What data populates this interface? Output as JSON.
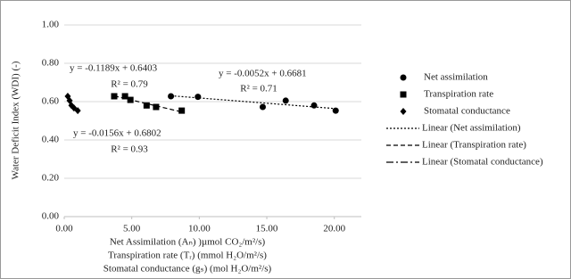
{
  "chart_data": {
    "type": "scatter",
    "y_label": "Water Deficit Index (WDI) (-)",
    "x_labels": [
      "Net Assimilation (Aₙ) )µmol CO₂/m²/s)",
      "Transpiration rate (Tᵣ) (mmol H₂O/m²/s)",
      "Stomatal conductance (gₛ) (mol H₂O/m²/s)"
    ],
    "xlim": [
      0,
      22
    ],
    "ylim": [
      0,
      1
    ],
    "xticks": [
      {
        "value": 0,
        "label": "0.00"
      },
      {
        "value": 5,
        "label": "5.00"
      },
      {
        "value": 10,
        "label": "10.00"
      },
      {
        "value": 15,
        "label": "15.00"
      },
      {
        "value": 20,
        "label": "20.00"
      }
    ],
    "yticks": [
      {
        "value": 0,
        "label": "0.00"
      },
      {
        "value": 0.2,
        "label": "0.20"
      },
      {
        "value": 0.4,
        "label": "0.40"
      },
      {
        "value": 0.6,
        "label": "0.60"
      },
      {
        "value": 0.8,
        "label": "0.80"
      },
      {
        "value": 1,
        "label": "1.00"
      }
    ],
    "grid": true,
    "series": [
      {
        "name": "Net assimilation",
        "marker": "circle",
        "color": "#000000",
        "x": [
          7.9,
          9.9,
          14.7,
          16.4,
          18.5,
          20.1
        ],
        "values": [
          0.628,
          0.625,
          0.572,
          0.605,
          0.58,
          0.553
        ]
      },
      {
        "name": "Transpiration rate",
        "marker": "square",
        "color": "#000000",
        "x": [
          3.7,
          4.5,
          4.9,
          6.1,
          6.8,
          8.7
        ],
        "values": [
          0.628,
          0.628,
          0.609,
          0.58,
          0.572,
          0.553
        ]
      },
      {
        "name": "Stomatal conductance",
        "marker": "diamond",
        "color": "#000000",
        "x": [
          0.26,
          0.4,
          0.53,
          0.72,
          1.0
        ],
        "values": [
          0.628,
          0.605,
          0.58,
          0.567,
          0.553
        ]
      }
    ],
    "trendlines": [
      {
        "name": "Linear (Net assimilation)",
        "dash": "2,2"
      },
      {
        "name": "Linear (Transpiration rate)",
        "dash": "5,3"
      },
      {
        "name": "Linear (Stomatal conductance)",
        "dash": "8,3,2,3"
      }
    ],
    "annotations": [
      "y = -0.1189x + 0.6403",
      "R² = 0.79",
      "y = -0.0052x + 0.6681",
      "R² = 0.71",
      "y = -0.0156x + 0.6802",
      "R² = 0.93"
    ]
  }
}
